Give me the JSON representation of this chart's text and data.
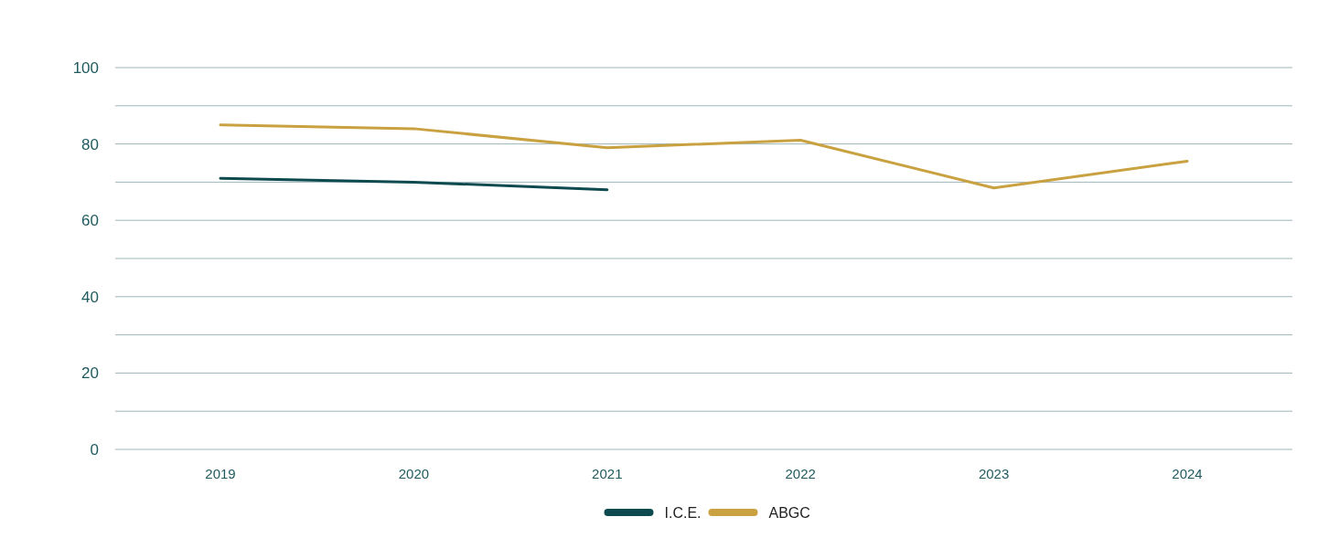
{
  "chart_data": {
    "type": "line",
    "categories": [
      "2019",
      "2020",
      "2021",
      "2022",
      "2023",
      "2024"
    ],
    "series": [
      {
        "name": "I.C.E.",
        "color": "#0d4a4f",
        "values": [
          71,
          70,
          68,
          null,
          null,
          null
        ]
      },
      {
        "name": "ABGC",
        "color": "#c9a140",
        "values": [
          85,
          84,
          79,
          81,
          68.5,
          75.5
        ]
      }
    ],
    "ylim": [
      0,
      100
    ],
    "yticks": [
      0,
      {
        "value": 10,
        "label": null
      },
      20,
      {
        "value": 30,
        "label": null
      },
      40,
      {
        "value": 50,
        "label": null
      },
      60,
      {
        "value": 70,
        "label": null
      },
      80,
      {
        "value": 90,
        "label": null
      },
      100
    ],
    "grid": "y",
    "legend": "bottom",
    "marker": "none",
    "line_style": "solid"
  }
}
